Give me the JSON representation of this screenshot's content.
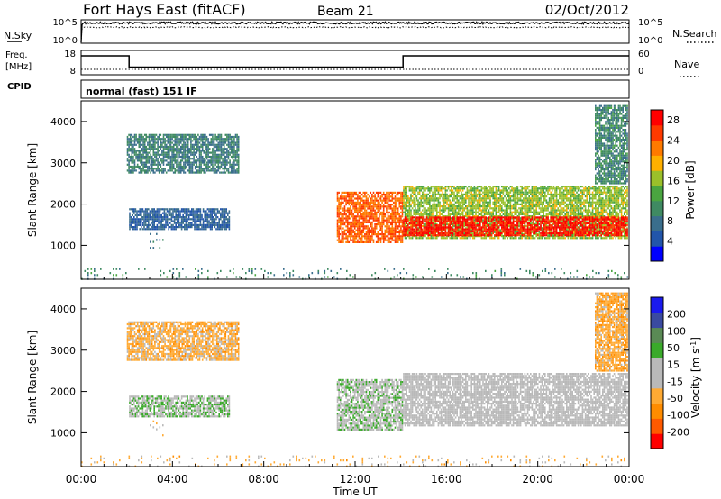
{
  "header": {
    "station": "Fort Hays East (fitACF)",
    "beam": "Beam 21",
    "date": "02/Oct/2012"
  },
  "noise_panel": {
    "left_label": "N.Sky",
    "right_label": "N.Search",
    "left_ticks": [
      "10^5",
      "10^0"
    ],
    "right_ticks": [
      "10^5",
      "10^0"
    ],
    "scale": "log"
  },
  "freq_panel": {
    "left_label_line1": "Freq.",
    "left_label_line2": "[MHz]",
    "right_label": "Nave",
    "left_ticks": [
      "18",
      "8"
    ],
    "right_ticks": [
      "60",
      "0"
    ]
  },
  "cpid_panel": {
    "label": "CPID",
    "text": "normal (fast) 151 IF"
  },
  "x_axis": {
    "label": "Time UT",
    "ticks": [
      "00:00",
      "04:00",
      "08:00",
      "12:00",
      "16:00",
      "20:00",
      "00:00"
    ]
  },
  "colors": {
    "power_scale": [
      "#0000ff",
      "#2255aa",
      "#3a6e8c",
      "#3f8a62",
      "#4aa540",
      "#9bc02a",
      "#ffb000",
      "#ff7a00",
      "#ff3a00",
      "#ff0000"
    ],
    "velocity_scale": [
      "#ff0000",
      "#ff5a00",
      "#ff8c00",
      "#ffaa33",
      "#b9b9b9",
      "#b9b9b9",
      "#3aaa2a",
      "#5a8a55",
      "#3a4aa0",
      "#1a1aee"
    ]
  },
  "chart_data": [
    {
      "type": "line",
      "name": "noise",
      "x": [
        0.0,
        0.1,
        3.0,
        4.0,
        4.3,
        8.0,
        12.0,
        16.0,
        20.0,
        22.0,
        24.0
      ],
      "series": [
        {
          "name": "N.Sky",
          "values": [
            1,
            30000,
            30000,
            35000,
            30000,
            30000,
            30000,
            30000,
            30000,
            30000,
            30000
          ]
        },
        {
          "name": "N.Search",
          "values": [
            1,
            3000,
            3000,
            3000,
            3000,
            3000,
            3000,
            3000,
            3000,
            3000,
            3000
          ]
        }
      ],
      "ylabel": "N.Sky",
      "ylabel_right": "N.Search",
      "xlim": [
        0,
        24
      ]
    },
    {
      "type": "line",
      "name": "frequency",
      "x": [
        0.0,
        2.1,
        2.1,
        14.1,
        14.1,
        24.0
      ],
      "series": [
        {
          "name": "Freq.",
          "values": [
            16.0,
            16.0,
            11.0,
            11.0,
            16.0,
            16.0
          ]
        },
        {
          "name": "Nave",
          "values": [
            12,
            12,
            12,
            12,
            12,
            12
          ]
        }
      ],
      "ylabel": "Freq. [MHz]",
      "ylabel_right": "Nave",
      "ylim": [
        8,
        18
      ],
      "ylim_right": [
        0,
        60
      ],
      "xlim": [
        0,
        24
      ]
    },
    {
      "type": "heatmap",
      "name": "power",
      "title": "",
      "xlabel": "",
      "ylabel": "Slant Range [km]",
      "xlim": [
        0,
        24
      ],
      "ylim": [
        180,
        4500
      ],
      "y_ticks": [
        1000,
        2000,
        3000,
        4000
      ],
      "colorbar": {
        "label": "Power [dB]",
        "ticks": [
          4,
          8,
          12,
          16,
          20,
          24,
          28
        ],
        "range": [
          0,
          30
        ]
      },
      "regions": [
        {
          "t0": 2.0,
          "t1": 6.9,
          "r0": 2750,
          "r1": 3700,
          "value": 9
        },
        {
          "t0": 2.1,
          "t1": 6.5,
          "r0": 1400,
          "r1": 1900,
          "value": 6
        },
        {
          "t0": 3.0,
          "t1": 3.6,
          "r0": 950,
          "r1": 1300,
          "value": 8
        },
        {
          "t0": 11.2,
          "t1": 14.1,
          "r0": 1100,
          "r1": 2300,
          "value": 24
        },
        {
          "t0": 14.1,
          "t1": 23.9,
          "r0": 1200,
          "r1": 2450,
          "value": 16
        },
        {
          "t0": 14.1,
          "t1": 23.9,
          "r0": 1250,
          "r1": 1700,
          "value": 28
        },
        {
          "t0": 22.5,
          "t1": 23.9,
          "r0": 2500,
          "r1": 4400,
          "value": 10
        },
        {
          "t0": 0.0,
          "t1": 24.0,
          "r0": 180,
          "r1": 450,
          "value": 10
        }
      ]
    },
    {
      "type": "heatmap",
      "name": "velocity",
      "title": "",
      "xlabel": "Time UT",
      "ylabel": "Slant Range [km]",
      "xlim": [
        0,
        24
      ],
      "ylim": [
        180,
        4500
      ],
      "y_ticks": [
        1000,
        2000,
        3000,
        4000
      ],
      "colorbar": {
        "label": "Velocity [m s^-1]",
        "ticks": [
          200,
          100,
          50,
          15,
          -15,
          -50,
          -100,
          -200
        ],
        "range": [
          -250,
          250
        ]
      },
      "regions": [
        {
          "t0": 2.0,
          "t1": 6.9,
          "r0": 2750,
          "r1": 3700,
          "value": -70
        },
        {
          "t0": 2.1,
          "t1": 6.5,
          "r0": 1400,
          "r1": 1900,
          "value": 40
        },
        {
          "t0": 3.0,
          "t1": 3.6,
          "r0": 950,
          "r1": 1300,
          "value": -30
        },
        {
          "t0": 11.2,
          "t1": 14.1,
          "r0": 1100,
          "r1": 2300,
          "value": 30
        },
        {
          "t0": 14.1,
          "t1": 23.9,
          "r0": 1200,
          "r1": 2450,
          "value": 0
        },
        {
          "t0": 22.5,
          "t1": 23.9,
          "r0": 2500,
          "r1": 4400,
          "value": -80
        },
        {
          "t0": 0.0,
          "t1": 24.0,
          "r0": 180,
          "r1": 450,
          "value": -60
        }
      ]
    }
  ]
}
